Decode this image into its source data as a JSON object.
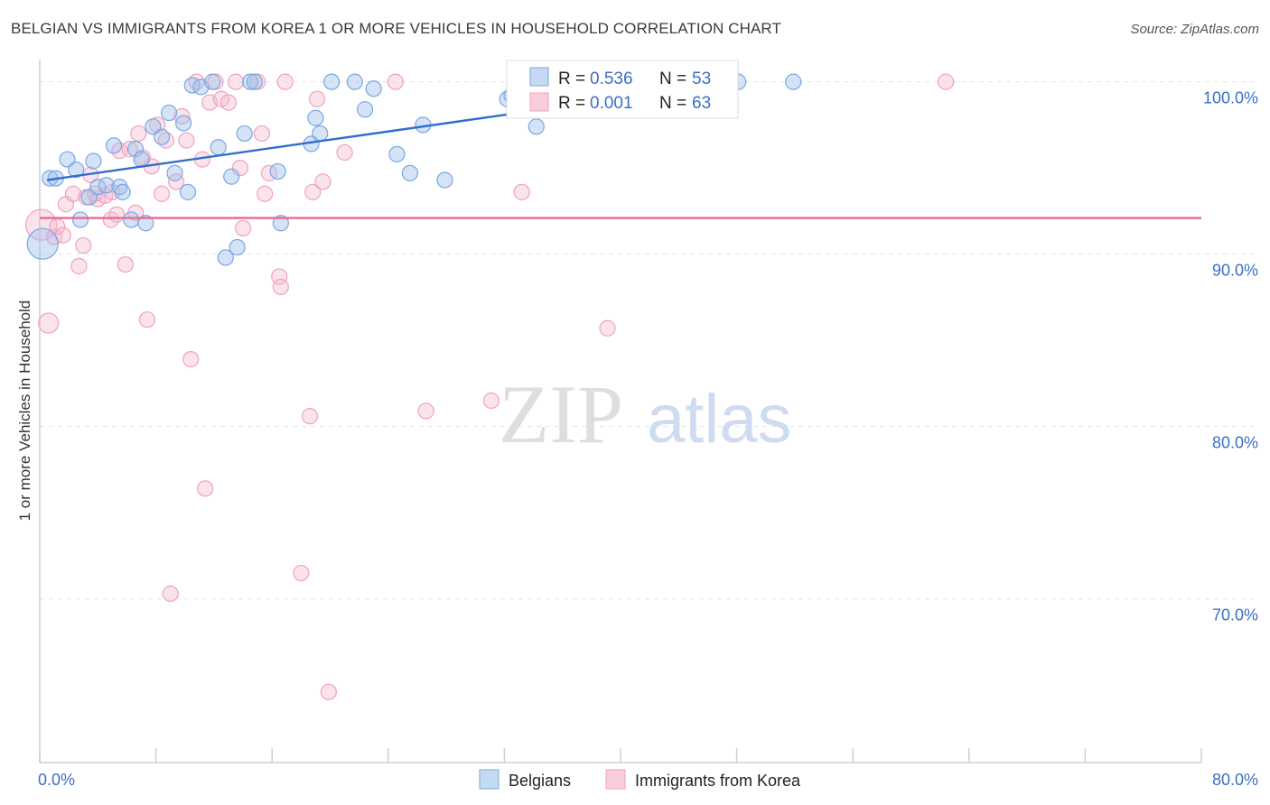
{
  "title": "BELGIAN VS IMMIGRANTS FROM KOREA 1 OR MORE VEHICLES IN HOUSEHOLD CORRELATION CHART",
  "source": "Source: ZipAtlas.com",
  "watermark": {
    "zip": "ZIP",
    "atlas": "atlas"
  },
  "legend_top": [
    {
      "r_label": "R = ",
      "r_value": "0.536",
      "n_label": "N = ",
      "n_value": "53"
    },
    {
      "r_label": "R = ",
      "r_value": "0.001",
      "n_label": "N = ",
      "n_value": "63"
    }
  ],
  "chart_data": {
    "type": "scatter",
    "title": "BELGIAN VS IMMIGRANTS FROM KOREA 1 OR MORE VEHICLES IN HOUSEHOLD CORRELATION CHART",
    "xlabel": "",
    "ylabel": "1 or more Vehicles in Household",
    "xlim": [
      0,
      80
    ],
    "ylim": [
      60.5,
      101.5
    ],
    "x_tick_labels": [
      "0.0%",
      "80.0%"
    ],
    "y_ticks": [
      100,
      90,
      80,
      70
    ],
    "y_tick_labels": [
      "100.0%",
      "90.0%",
      "80.0%",
      "70.0%"
    ],
    "grid": true,
    "legend_position": "bottom",
    "colors": {
      "Belgians": "#7aa7e0",
      "Immigrants from Korea": "#f0a2bd",
      "belgian_line": "#2f6ecc",
      "korea_line": "#e86a93"
    },
    "series": [
      {
        "name": "Belgians",
        "trend": {
          "x": [
            0.5,
            48
          ],
          "y": [
            94.3,
            100.0
          ]
        },
        "points": [
          [
            0.2,
            90.6
          ],
          [
            0.7,
            94.4
          ],
          [
            1.1,
            94.4
          ],
          [
            1.9,
            95.5
          ],
          [
            2.5,
            94.9
          ],
          [
            2.8,
            92.0
          ],
          [
            3.4,
            93.3
          ],
          [
            3.7,
            95.4
          ],
          [
            4.0,
            93.9
          ],
          [
            4.6,
            94.0
          ],
          [
            5.1,
            96.3
          ],
          [
            5.5,
            93.9
          ],
          [
            5.7,
            93.6
          ],
          [
            6.3,
            92.0
          ],
          [
            6.6,
            96.1
          ],
          [
            7.0,
            95.5
          ],
          [
            7.3,
            91.8
          ],
          [
            7.8,
            97.4
          ],
          [
            8.4,
            96.8
          ],
          [
            8.9,
            98.2
          ],
          [
            9.3,
            94.7
          ],
          [
            9.9,
            97.6
          ],
          [
            10.2,
            93.6
          ],
          [
            10.5,
            99.8
          ],
          [
            11.1,
            99.7
          ],
          [
            11.9,
            100.0
          ],
          [
            12.3,
            96.2
          ],
          [
            12.8,
            89.8
          ],
          [
            13.2,
            94.5
          ],
          [
            13.6,
            90.4
          ],
          [
            14.1,
            97.0
          ],
          [
            14.5,
            100.0
          ],
          [
            14.8,
            100.0
          ],
          [
            16.4,
            94.8
          ],
          [
            16.6,
            91.8
          ],
          [
            18.7,
            96.4
          ],
          [
            19.0,
            97.9
          ],
          [
            19.3,
            97.0
          ],
          [
            21.7,
            100.0
          ],
          [
            22.4,
            98.4
          ],
          [
            23.0,
            99.6
          ],
          [
            24.6,
            95.8
          ],
          [
            25.5,
            94.7
          ],
          [
            26.4,
            97.5
          ],
          [
            27.9,
            94.3
          ],
          [
            32.2,
            99.0
          ],
          [
            32.5,
            99.2
          ],
          [
            34.2,
            97.4
          ],
          [
            43.6,
            100.0
          ],
          [
            45.5,
            100.0
          ],
          [
            48.1,
            100.0
          ],
          [
            51.9,
            100.0
          ],
          [
            20.1,
            100.0
          ]
        ]
      },
      {
        "name": "Immigrants from Korea",
        "trend": {
          "x": [
            0,
            80
          ],
          "y": [
            92.1,
            92.1
          ]
        },
        "points": [
          [
            0.1,
            91.7
          ],
          [
            0.6,
            86.0
          ],
          [
            1.0,
            91.0
          ],
          [
            1.2,
            91.6
          ],
          [
            1.6,
            91.1
          ],
          [
            1.8,
            92.9
          ],
          [
            2.3,
            93.5
          ],
          [
            2.7,
            89.3
          ],
          [
            3.0,
            90.5
          ],
          [
            3.2,
            93.3
          ],
          [
            3.5,
            94.6
          ],
          [
            4.0,
            93.2
          ],
          [
            4.5,
            93.4
          ],
          [
            4.9,
            92.0
          ],
          [
            5.3,
            92.3
          ],
          [
            5.5,
            96.0
          ],
          [
            5.9,
            89.4
          ],
          [
            6.2,
            96.1
          ],
          [
            6.6,
            92.4
          ],
          [
            6.8,
            97.0
          ],
          [
            7.1,
            95.6
          ],
          [
            7.4,
            86.2
          ],
          [
            7.7,
            95.1
          ],
          [
            8.1,
            97.5
          ],
          [
            8.4,
            93.5
          ],
          [
            8.7,
            96.6
          ],
          [
            9.0,
            70.3
          ],
          [
            9.4,
            94.2
          ],
          [
            9.8,
            98.0
          ],
          [
            10.1,
            96.6
          ],
          [
            10.4,
            83.9
          ],
          [
            10.8,
            100.0
          ],
          [
            11.4,
            76.4
          ],
          [
            11.7,
            98.8
          ],
          [
            12.1,
            100.0
          ],
          [
            12.5,
            99.0
          ],
          [
            13.0,
            98.8
          ],
          [
            13.5,
            100.0
          ],
          [
            13.8,
            95.0
          ],
          [
            14.0,
            91.5
          ],
          [
            15.0,
            100.0
          ],
          [
            15.3,
            97.0
          ],
          [
            15.5,
            93.5
          ],
          [
            15.8,
            94.7
          ],
          [
            16.5,
            88.7
          ],
          [
            16.6,
            88.1
          ],
          [
            16.9,
            100.0
          ],
          [
            18.0,
            71.5
          ],
          [
            18.6,
            80.6
          ],
          [
            18.8,
            93.6
          ],
          [
            19.1,
            99.0
          ],
          [
            19.5,
            94.2
          ],
          [
            21.0,
            95.9
          ],
          [
            24.5,
            100.0
          ],
          [
            26.6,
            80.9
          ],
          [
            31.1,
            81.5
          ],
          [
            33.2,
            93.6
          ],
          [
            39.1,
            85.7
          ],
          [
            62.4,
            100.0
          ],
          [
            19.9,
            64.6
          ],
          [
            11.2,
            95.5
          ],
          [
            5.0,
            93.6
          ],
          [
            3.8,
            93.5
          ]
        ]
      }
    ]
  },
  "bottom_legend": [
    "Belgians",
    "Immigrants from Korea"
  ]
}
